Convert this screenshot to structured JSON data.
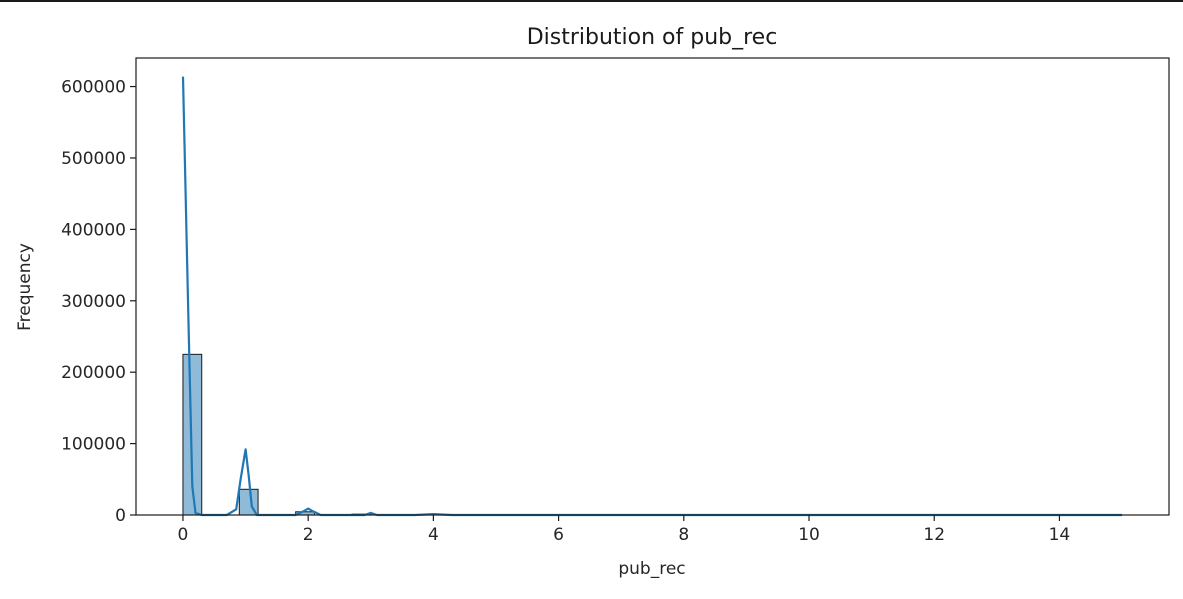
{
  "chart_data": {
    "type": "bar",
    "title": "Distribution of pub_rec",
    "xlabel": "pub_rec",
    "ylabel": "Frequency",
    "xlim": [
      -0.75,
      15.75
    ],
    "ylim": [
      0,
      640000
    ],
    "xticks": [
      0,
      2,
      4,
      6,
      8,
      10,
      12,
      14
    ],
    "yticks": [
      0,
      100000,
      200000,
      300000,
      400000,
      500000,
      600000
    ],
    "grid": false,
    "bar_color": "#1f77b4",
    "bar_width": 0.3,
    "bins": [
      {
        "x0": 0.0,
        "count": 225000
      },
      {
        "x0": 0.9,
        "count": 36000
      },
      {
        "x0": 1.8,
        "count": 4500
      },
      {
        "x0": 2.7,
        "count": 1200
      },
      {
        "x0": 3.9,
        "count": 400
      },
      {
        "x0": 4.8,
        "count": 200
      },
      {
        "x0": 6.0,
        "count": 80
      },
      {
        "x0": 6.9,
        "count": 40
      },
      {
        "x0": 8.1,
        "count": 20
      },
      {
        "x0": 9.9,
        "count": 10
      },
      {
        "x0": 11.1,
        "count": 5
      },
      {
        "x0": 12.9,
        "count": 3
      },
      {
        "x0": 14.7,
        "count": 2
      }
    ],
    "kde": {
      "x": [
        0,
        0.08,
        0.15,
        0.2,
        0.3,
        0.5,
        0.7,
        0.85,
        0.92,
        1.0,
        1.05,
        1.1,
        1.18,
        1.3,
        1.5,
        1.8,
        1.92,
        2.0,
        2.08,
        2.2,
        2.5,
        2.9,
        3.0,
        3.1,
        3.3,
        3.7,
        4.0,
        4.3,
        5.0,
        6.0,
        7.0,
        8.0,
        9.0,
        10.0,
        11.0,
        12.0,
        13.0,
        14.0,
        15.0
      ],
      "y": [
        614000,
        300000,
        40000,
        3000,
        0,
        0,
        0,
        8000,
        50000,
        92000,
        55000,
        12000,
        0,
        0,
        0,
        0,
        5000,
        9000,
        5000,
        0,
        0,
        0,
        3000,
        0,
        0,
        0,
        1200,
        0,
        0,
        0,
        0,
        0,
        0,
        0,
        0,
        0,
        0,
        0,
        0
      ]
    }
  }
}
